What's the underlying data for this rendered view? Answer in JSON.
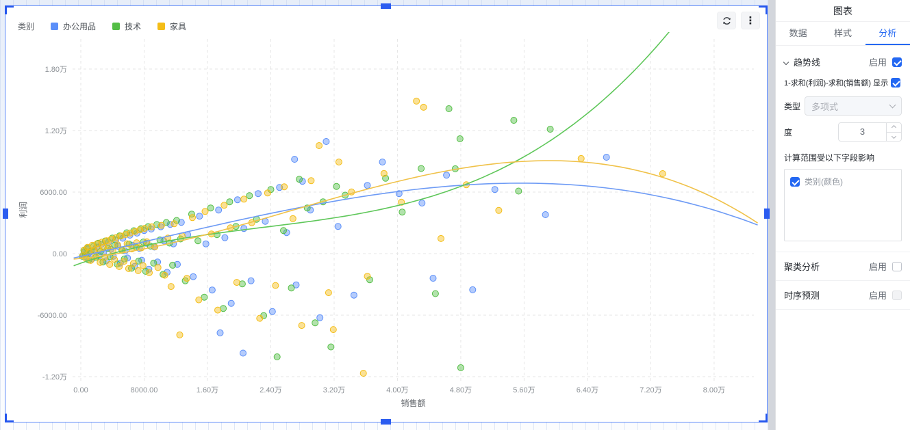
{
  "panel": {
    "title": "图表",
    "tabs": [
      {
        "label": "数据",
        "active": false
      },
      {
        "label": "样式",
        "active": false
      },
      {
        "label": "分析",
        "active": true
      }
    ],
    "trend": {
      "section_label": "趋势线",
      "enable_label": "启用",
      "enabled": true,
      "series_toggle": {
        "label": "1-求和(利润)-求和(销售额)",
        "show_label": "显示",
        "checked": true
      },
      "type_label": "类型",
      "type_value": "多项式",
      "degree_label": "度",
      "degree_value": "3",
      "scope_label": "计算范围受以下字段影响",
      "scope_items": [
        {
          "label": "类别(颜色)",
          "checked": true
        }
      ]
    },
    "cluster": {
      "label": "聚类分析",
      "enable_label": "启用",
      "checked": false
    },
    "forecast": {
      "label": "时序预测",
      "enable_label": "启用",
      "checked": false,
      "disabled": true
    }
  },
  "toolbar": {
    "refresh_icon": "refresh-icon",
    "more_icon": "kebab-menu-icon",
    "more_glyph": "⋮"
  },
  "chart_data": {
    "type": "scatter",
    "legend_title": "类别",
    "xlabel": "销售额",
    "ylabel": "利润",
    "xlim": [
      -1038,
      85025
    ],
    "ylim": [
      -12400,
      20933
    ],
    "grid": "dashed",
    "legend_position": "top-left",
    "x_ticks": [
      {
        "v": 0,
        "label": "0.00"
      },
      {
        "v": 8000,
        "label": "8000.00"
      },
      {
        "v": 16000,
        "label": "1.60万"
      },
      {
        "v": 24000,
        "label": "2.40万"
      },
      {
        "v": 32000,
        "label": "3.20万"
      },
      {
        "v": 40000,
        "label": "4.00万"
      },
      {
        "v": 48000,
        "label": "4.80万"
      },
      {
        "v": 56000,
        "label": "5.60万"
      },
      {
        "v": 64000,
        "label": "6.40万"
      },
      {
        "v": 72000,
        "label": "7.20万"
      },
      {
        "v": 80000,
        "label": "8.00万"
      }
    ],
    "y_ticks": [
      {
        "v": 18000,
        "label": "1.80万"
      },
      {
        "v": 12000,
        "label": "1.20万"
      },
      {
        "v": 6000,
        "label": "6000.00"
      },
      {
        "v": 0,
        "label": "0.00"
      },
      {
        "v": -6000,
        "label": "-6000.00"
      },
      {
        "v": -12000,
        "label": "-1.20万"
      }
    ],
    "series": [
      {
        "name": "办公用品",
        "color": "#5B8FF9",
        "points": [
          [
            300,
            -150
          ],
          [
            500,
            200
          ],
          [
            700,
            -350
          ],
          [
            900,
            450
          ],
          [
            1100,
            120
          ],
          [
            1400,
            -520
          ],
          [
            1700,
            360
          ],
          [
            2000,
            640
          ],
          [
            2300,
            -230
          ],
          [
            2600,
            900
          ],
          [
            2900,
            160
          ],
          [
            3200,
            -700
          ],
          [
            3500,
            1120
          ],
          [
            3800,
            420
          ],
          [
            4100,
            -260
          ],
          [
            4400,
            1320
          ],
          [
            4700,
            720
          ],
          [
            5000,
            -920
          ],
          [
            5300,
            1500
          ],
          [
            5600,
            260
          ],
          [
            5900,
            -430
          ],
          [
            6200,
            1800
          ],
          [
            6500,
            820
          ],
          [
            6800,
            -1250
          ],
          [
            7100,
            2000
          ],
          [
            7400,
            520
          ],
          [
            7700,
            -640
          ],
          [
            8000,
            2250
          ],
          [
            8300,
            1020
          ],
          [
            8600,
            -1520
          ],
          [
            8900,
            2400
          ],
          [
            9300,
            640
          ],
          [
            9700,
            -820
          ],
          [
            10100,
            2620
          ],
          [
            10500,
            1230
          ],
          [
            10900,
            -1830
          ],
          [
            11300,
            2850
          ],
          [
            11700,
            950
          ],
          [
            12200,
            -1050
          ],
          [
            12700,
            3050
          ],
          [
            13500,
            1850
          ],
          [
            14200,
            -2250
          ],
          [
            15000,
            3650
          ],
          [
            15800,
            950
          ],
          [
            16600,
            -3550
          ],
          [
            17400,
            4250
          ],
          [
            17600,
            -7730
          ],
          [
            18200,
            1550
          ],
          [
            19000,
            -4850
          ],
          [
            19800,
            5250
          ],
          [
            20500,
            -9700
          ],
          [
            20600,
            2450
          ],
          [
            21500,
            -2650
          ],
          [
            22400,
            5850
          ],
          [
            23300,
            3150
          ],
          [
            24200,
            -5650
          ],
          [
            25100,
            6450
          ],
          [
            26000,
            2050
          ],
          [
            27000,
            9200
          ],
          [
            27200,
            -3050
          ],
          [
            28000,
            7050
          ],
          [
            29000,
            4250
          ],
          [
            30200,
            -6250
          ],
          [
            31000,
            10930
          ],
          [
            32500,
            2650
          ],
          [
            34500,
            -4050
          ],
          [
            36200,
            6650
          ],
          [
            38100,
            8930
          ],
          [
            40200,
            5850
          ],
          [
            43100,
            4930
          ],
          [
            44500,
            -2400
          ],
          [
            46200,
            7650
          ],
          [
            49500,
            -3530
          ],
          [
            52300,
            6250
          ],
          [
            58700,
            3800
          ],
          [
            66400,
            9400
          ]
        ]
      },
      {
        "name": "技术",
        "color": "#54BE46",
        "points": [
          [
            200,
            -260
          ],
          [
            400,
            310
          ],
          [
            600,
            -120
          ],
          [
            800,
            520
          ],
          [
            1000,
            -620
          ],
          [
            1300,
            260
          ],
          [
            1600,
            720
          ],
          [
            1900,
            -360
          ],
          [
            2200,
            1010
          ],
          [
            2500,
            210
          ],
          [
            2800,
            -820
          ],
          [
            3100,
            1230
          ],
          [
            3400,
            520
          ],
          [
            3700,
            -310
          ],
          [
            4000,
            1520
          ],
          [
            4300,
            830
          ],
          [
            4600,
            -1020
          ],
          [
            4900,
            1730
          ],
          [
            5200,
            320
          ],
          [
            5500,
            -520
          ],
          [
            5800,
            2030
          ],
          [
            6100,
            930
          ],
          [
            6400,
            -1430
          ],
          [
            6700,
            2230
          ],
          [
            7000,
            620
          ],
          [
            7300,
            -730
          ],
          [
            7600,
            2430
          ],
          [
            7900,
            1130
          ],
          [
            8200,
            -1730
          ],
          [
            8500,
            2630
          ],
          [
            8800,
            730
          ],
          [
            9200,
            -930
          ],
          [
            9600,
            2830
          ],
          [
            10000,
            1330
          ],
          [
            10400,
            -2030
          ],
          [
            10800,
            3030
          ],
          [
            11200,
            1030
          ],
          [
            11600,
            -1130
          ],
          [
            12100,
            3230
          ],
          [
            12600,
            1430
          ],
          [
            13200,
            -2650
          ],
          [
            14000,
            3850
          ],
          [
            14800,
            1250
          ],
          [
            15600,
            -4250
          ],
          [
            16400,
            4450
          ],
          [
            17200,
            1850
          ],
          [
            18000,
            -5350
          ],
          [
            18800,
            5050
          ],
          [
            19600,
            2650
          ],
          [
            20400,
            -2950
          ],
          [
            21300,
            5650
          ],
          [
            22200,
            3350
          ],
          [
            23100,
            -6050
          ],
          [
            24000,
            6250
          ],
          [
            24800,
            -10070
          ],
          [
            25600,
            2250
          ],
          [
            26600,
            -3350
          ],
          [
            27600,
            7250
          ],
          [
            28600,
            4450
          ],
          [
            29600,
            -6750
          ],
          [
            30600,
            5050
          ],
          [
            31600,
            -9100
          ],
          [
            32300,
            6550
          ],
          [
            33400,
            5700
          ],
          [
            36500,
            -2550
          ],
          [
            38500,
            7350
          ],
          [
            40600,
            4050
          ],
          [
            43000,
            8300
          ],
          [
            44800,
            -3900
          ],
          [
            46500,
            14130
          ],
          [
            47300,
            8270
          ],
          [
            47900,
            11200
          ],
          [
            48000,
            -11130
          ],
          [
            54700,
            13000
          ],
          [
            55300,
            6100
          ],
          [
            59300,
            12130
          ]
        ]
      },
      {
        "name": "家具",
        "color": "#F4BD17",
        "points": [
          [
            250,
            -210
          ],
          [
            450,
            360
          ],
          [
            650,
            -460
          ],
          [
            850,
            610
          ],
          [
            1050,
            160
          ],
          [
            1250,
            -660
          ],
          [
            1450,
            810
          ],
          [
            1650,
            310
          ],
          [
            1850,
            -260
          ],
          [
            2050,
            960
          ],
          [
            2250,
            460
          ],
          [
            2450,
            -860
          ],
          [
            2650,
            1110
          ],
          [
            2850,
            610
          ],
          [
            3050,
            -360
          ],
          [
            3250,
            1260
          ],
          [
            3450,
            760
          ],
          [
            3650,
            -1060
          ],
          [
            3850,
            1410
          ],
          [
            4050,
            260
          ],
          [
            4250,
            -560
          ],
          [
            4450,
            1560
          ],
          [
            4650,
            860
          ],
          [
            4850,
            -1260
          ],
          [
            5050,
            1710
          ],
          [
            5250,
            360
          ],
          [
            5450,
            -760
          ],
          [
            5650,
            1860
          ],
          [
            5850,
            960
          ],
          [
            6050,
            -1460
          ],
          [
            6250,
            2010
          ],
          [
            6450,
            460
          ],
          [
            6650,
            -960
          ],
          [
            6850,
            2160
          ],
          [
            7050,
            1060
          ],
          [
            7250,
            -1660
          ],
          [
            7450,
            2310
          ],
          [
            7650,
            560
          ],
          [
            7850,
            -1160
          ],
          [
            8050,
            2460
          ],
          [
            8350,
            1160
          ],
          [
            8650,
            -1860
          ],
          [
            8950,
            2610
          ],
          [
            9350,
            660
          ],
          [
            9750,
            -1360
          ],
          [
            10200,
            2760
          ],
          [
            10600,
            -2110
          ],
          [
            11000,
            1510
          ],
          [
            11400,
            -3210
          ],
          [
            11800,
            2910
          ],
          [
            12500,
            -7930
          ],
          [
            12800,
            1710
          ],
          [
            13400,
            -2410
          ],
          [
            14100,
            3510
          ],
          [
            14900,
            -4510
          ],
          [
            15700,
            4110
          ],
          [
            16500,
            1910
          ],
          [
            17300,
            -5510
          ],
          [
            18100,
            4710
          ],
          [
            18900,
            2510
          ],
          [
            19700,
            -2810
          ],
          [
            20600,
            5310
          ],
          [
            21600,
            3010
          ],
          [
            22600,
            -6310
          ],
          [
            23600,
            5910
          ],
          [
            24600,
            -3110
          ],
          [
            25700,
            6510
          ],
          [
            26800,
            3410
          ],
          [
            27900,
            -7010
          ],
          [
            29100,
            7110
          ],
          [
            30100,
            10530
          ],
          [
            31300,
            -3810
          ],
          [
            31900,
            -7410
          ],
          [
            32600,
            8930
          ],
          [
            34200,
            6010
          ],
          [
            35700,
            -11670
          ],
          [
            36200,
            -2210
          ],
          [
            38300,
            7810
          ],
          [
            40500,
            5010
          ],
          [
            42400,
            14870
          ],
          [
            43300,
            14270
          ],
          [
            45500,
            1470
          ],
          [
            48700,
            6710
          ],
          [
            52800,
            4210
          ],
          [
            63200,
            9270
          ],
          [
            73500,
            7800
          ]
        ]
      }
    ],
    "trendlines": [
      {
        "series": "办公用品",
        "type": "polynomial",
        "degree": 3,
        "color": "#6E9BF5",
        "coeffs_wan": [
          -270,
          1748,
          64,
          -26.5
        ],
        "domain_wan": [
          -0.09,
          8.55
        ]
      },
      {
        "series": "技术",
        "type": "polynomial",
        "degree": 3,
        "color": "#5FC75A",
        "coeffs_wan": [
          -933,
          2642,
          -732,
          105.6
        ],
        "domain_wan": [
          -0.09,
          7.45
        ]
      },
      {
        "series": "家具",
        "type": "polynomial",
        "degree": 3,
        "color": "#F0C24A",
        "coeffs_wan": [
          -470,
          763,
          560,
          -70.4
        ],
        "domain_wan": [
          -0.09,
          8.55
        ]
      }
    ]
  }
}
